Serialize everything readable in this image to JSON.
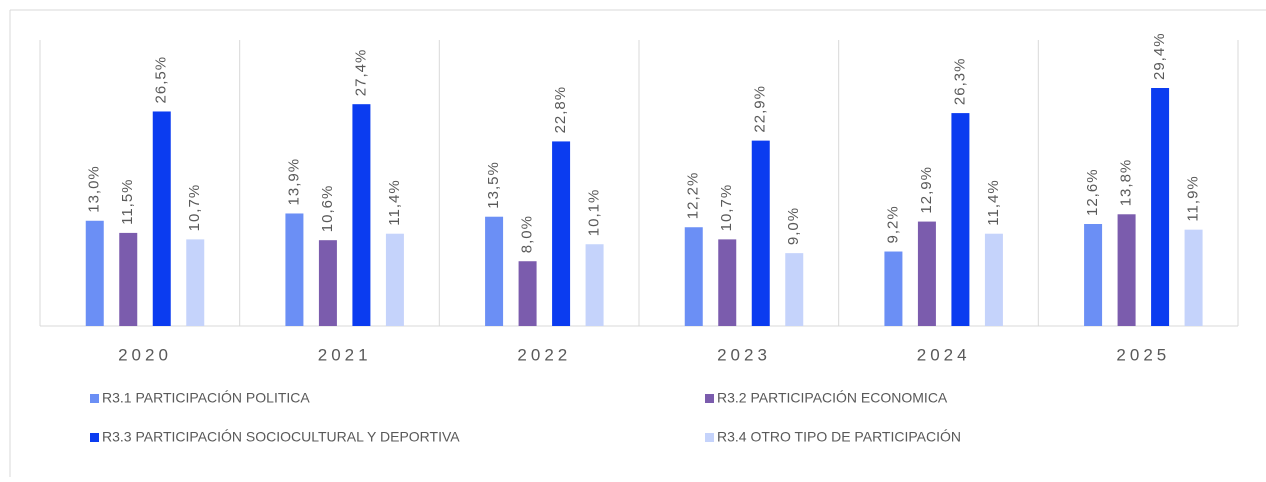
{
  "chart_data": {
    "type": "bar",
    "categories": [
      "2020",
      "2021",
      "2022",
      "2023",
      "2024",
      "2025"
    ],
    "series": [
      {
        "name": "R3.1 PARTICIPACIÓN POLITICA",
        "color": "#6b8ff5",
        "values": [
          13.0,
          13.9,
          13.5,
          12.2,
          9.2,
          12.6
        ],
        "value_labels": [
          "13,0%",
          "13,9%",
          "13,5%",
          "12,2%",
          "9,2%",
          "12,6%"
        ]
      },
      {
        "name": "R3.2 PARTICIPACIÓN ECONOMICA",
        "color": "#7b5cad",
        "values": [
          11.5,
          10.6,
          8.0,
          10.7,
          12.9,
          13.8
        ],
        "value_labels": [
          "11,5%",
          "10,6%",
          "8,0%",
          "10,7%",
          "12,9%",
          "13,8%"
        ]
      },
      {
        "name": "R3.3 PARTICIPACIÓN SOCIOCULTURAL Y DEPORTIVA",
        "color": "#0b3cf0",
        "values": [
          26.5,
          27.4,
          22.8,
          22.9,
          26.3,
          29.4
        ],
        "value_labels": [
          "26,5%",
          "27,4%",
          "22,8%",
          "22,9%",
          "26,3%",
          "29,4%"
        ]
      },
      {
        "name": "R3.4 OTRO TIPO DE PARTICIPACIÓN",
        "color": "#c5d3fb",
        "values": [
          10.7,
          11.4,
          10.1,
          9.0,
          11.4,
          11.9
        ],
        "value_labels": [
          "10,7%",
          "11,4%",
          "10,1%",
          "9,0%",
          "11,4%",
          "11,9%"
        ]
      }
    ]
  }
}
